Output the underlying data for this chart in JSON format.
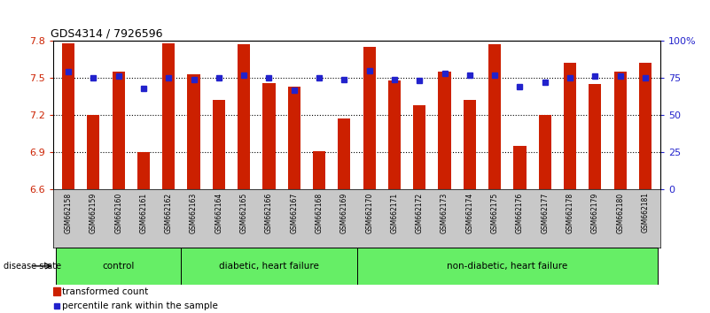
{
  "title": "GDS4314 / 7926596",
  "samples": [
    "GSM662158",
    "GSM662159",
    "GSM662160",
    "GSM662161",
    "GSM662162",
    "GSM662163",
    "GSM662164",
    "GSM662165",
    "GSM662166",
    "GSM662167",
    "GSM662168",
    "GSM662169",
    "GSM662170",
    "GSM662171",
    "GSM662172",
    "GSM662173",
    "GSM662174",
    "GSM662175",
    "GSM662176",
    "GSM662177",
    "GSM662178",
    "GSM662179",
    "GSM662180",
    "GSM662181"
  ],
  "bar_values": [
    7.78,
    7.2,
    7.55,
    6.9,
    7.78,
    7.53,
    7.32,
    7.77,
    7.46,
    7.43,
    6.91,
    7.17,
    7.75,
    7.48,
    7.28,
    7.55,
    7.32,
    7.77,
    6.95,
    7.2,
    7.62,
    7.45,
    7.55,
    7.62
  ],
  "percentile_values": [
    79,
    75,
    76,
    68,
    75,
    74,
    75,
    77,
    75,
    67,
    75,
    74,
    80,
    74,
    73,
    78,
    77,
    77,
    69,
    72,
    75,
    76,
    76,
    75
  ],
  "ylim_left": [
    6.6,
    7.8
  ],
  "ylim_right": [
    0,
    100
  ],
  "yticks_left": [
    6.6,
    6.9,
    7.2,
    7.5,
    7.8
  ],
  "yticks_right": [
    0,
    25,
    50,
    75,
    100
  ],
  "ytick_labels_right": [
    "0",
    "25",
    "50",
    "75",
    "100%"
  ],
  "bar_color": "#CC2000",
  "dot_color": "#2222CC",
  "group_defs": [
    {
      "label": "control",
      "start": 0,
      "end": 4
    },
    {
      "label": "diabetic, heart failure",
      "start": 5,
      "end": 11
    },
    {
      "label": "non-diabetic, heart failure",
      "start": 12,
      "end": 23
    }
  ],
  "disease_state_label": "disease state",
  "legend_bar_label": "transformed count",
  "legend_dot_label": "percentile rank within the sample",
  "hline_values": [
    6.9,
    7.2,
    7.5
  ],
  "bar_color_left": "#CC2000",
  "ytick_color_left": "#CC2000",
  "ytick_color_right": "#2222CC",
  "label_bg_color": "#C8C8C8",
  "group_color": "#66EE66",
  "group_border_color": "#000000",
  "title_fontsize": 9,
  "bar_width": 0.5,
  "dot_size": 4
}
